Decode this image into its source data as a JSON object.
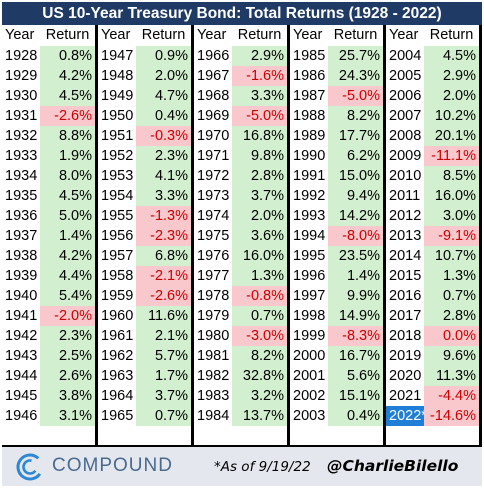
{
  "title": "US 10-Year Treasury Bond: Total Returns (1928 - 2022)",
  "headers": {
    "year": "Year",
    "return": "Return"
  },
  "colors": {
    "header_bg": "#1f3a64",
    "positive_bg": "#d2f0cf",
    "negative_bg": "#f8c8cc",
    "negative_text": "#cc0000",
    "highlight_bg": "#1f7fd6"
  },
  "columns": [
    [
      [
        "1928",
        "0.8%"
      ],
      [
        "1929",
        "4.2%"
      ],
      [
        "1930",
        "4.5%"
      ],
      [
        "1931",
        "-2.6%"
      ],
      [
        "1932",
        "8.8%"
      ],
      [
        "1933",
        "1.9%"
      ],
      [
        "1934",
        "8.0%"
      ],
      [
        "1935",
        "4.5%"
      ],
      [
        "1936",
        "5.0%"
      ],
      [
        "1937",
        "1.4%"
      ],
      [
        "1938",
        "4.2%"
      ],
      [
        "1939",
        "4.4%"
      ],
      [
        "1940",
        "5.4%"
      ],
      [
        "1941",
        "-2.0%"
      ],
      [
        "1942",
        "2.3%"
      ],
      [
        "1943",
        "2.5%"
      ],
      [
        "1944",
        "2.6%"
      ],
      [
        "1945",
        "3.8%"
      ],
      [
        "1946",
        "3.1%"
      ]
    ],
    [
      [
        "1947",
        "0.9%"
      ],
      [
        "1948",
        "2.0%"
      ],
      [
        "1949",
        "4.7%"
      ],
      [
        "1950",
        "0.4%"
      ],
      [
        "1951",
        "-0.3%"
      ],
      [
        "1952",
        "2.3%"
      ],
      [
        "1953",
        "4.1%"
      ],
      [
        "1954",
        "3.3%"
      ],
      [
        "1955",
        "-1.3%"
      ],
      [
        "1956",
        "-2.3%"
      ],
      [
        "1957",
        "6.8%"
      ],
      [
        "1958",
        "-2.1%"
      ],
      [
        "1959",
        "-2.6%"
      ],
      [
        "1960",
        "11.6%"
      ],
      [
        "1961",
        "2.1%"
      ],
      [
        "1962",
        "5.7%"
      ],
      [
        "1963",
        "1.7%"
      ],
      [
        "1964",
        "3.7%"
      ],
      [
        "1965",
        "0.7%"
      ]
    ],
    [
      [
        "1966",
        "2.9%"
      ],
      [
        "1967",
        "-1.6%"
      ],
      [
        "1968",
        "3.3%"
      ],
      [
        "1969",
        "-5.0%"
      ],
      [
        "1970",
        "16.8%"
      ],
      [
        "1971",
        "9.8%"
      ],
      [
        "1972",
        "2.8%"
      ],
      [
        "1973",
        "3.7%"
      ],
      [
        "1974",
        "2.0%"
      ],
      [
        "1975",
        "3.6%"
      ],
      [
        "1976",
        "16.0%"
      ],
      [
        "1977",
        "1.3%"
      ],
      [
        "1978",
        "-0.8%"
      ],
      [
        "1979",
        "0.7%"
      ],
      [
        "1980",
        "-3.0%"
      ],
      [
        "1981",
        "8.2%"
      ],
      [
        "1982",
        "32.8%"
      ],
      [
        "1983",
        "3.2%"
      ],
      [
        "1984",
        "13.7%"
      ]
    ],
    [
      [
        "1985",
        "25.7%"
      ],
      [
        "1986",
        "24.3%"
      ],
      [
        "1987",
        "-5.0%"
      ],
      [
        "1988",
        "8.2%"
      ],
      [
        "1989",
        "17.7%"
      ],
      [
        "1990",
        "6.2%"
      ],
      [
        "1991",
        "15.0%"
      ],
      [
        "1992",
        "9.4%"
      ],
      [
        "1993",
        "14.2%"
      ],
      [
        "1994",
        "-8.0%"
      ],
      [
        "1995",
        "23.5%"
      ],
      [
        "1996",
        "1.4%"
      ],
      [
        "1997",
        "9.9%"
      ],
      [
        "1998",
        "14.9%"
      ],
      [
        "1999",
        "-8.3%"
      ],
      [
        "2000",
        "16.7%"
      ],
      [
        "2001",
        "5.6%"
      ],
      [
        "2002",
        "15.1%"
      ],
      [
        "2003",
        "0.4%"
      ]
    ],
    [
      [
        "2004",
        "4.5%"
      ],
      [
        "2005",
        "2.9%"
      ],
      [
        "2006",
        "2.0%"
      ],
      [
        "2007",
        "10.2%"
      ],
      [
        "2008",
        "20.1%"
      ],
      [
        "2009",
        "-11.1%"
      ],
      [
        "2010",
        "8.5%"
      ],
      [
        "2011",
        "16.0%"
      ],
      [
        "2012",
        "3.0%"
      ],
      [
        "2013",
        "-9.1%"
      ],
      [
        "2014",
        "10.7%"
      ],
      [
        "2015",
        "1.3%"
      ],
      [
        "2016",
        "0.7%"
      ],
      [
        "2017",
        "2.8%"
      ],
      [
        "2018",
        "0.0%"
      ],
      [
        "2019",
        "9.6%"
      ],
      [
        "2020",
        "11.3%"
      ],
      [
        "2021",
        "-4.4%"
      ],
      [
        "2022*",
        "-14.6%"
      ]
    ]
  ],
  "zero_red_years": [
    "2018"
  ],
  "highlight_years": [
    "2022*"
  ],
  "footer": {
    "brand": "COMPOUND",
    "logo_icon": "compound-c-logo-icon",
    "as_of": "*As of 9/19/22",
    "handle": "@CharlieBilello"
  }
}
